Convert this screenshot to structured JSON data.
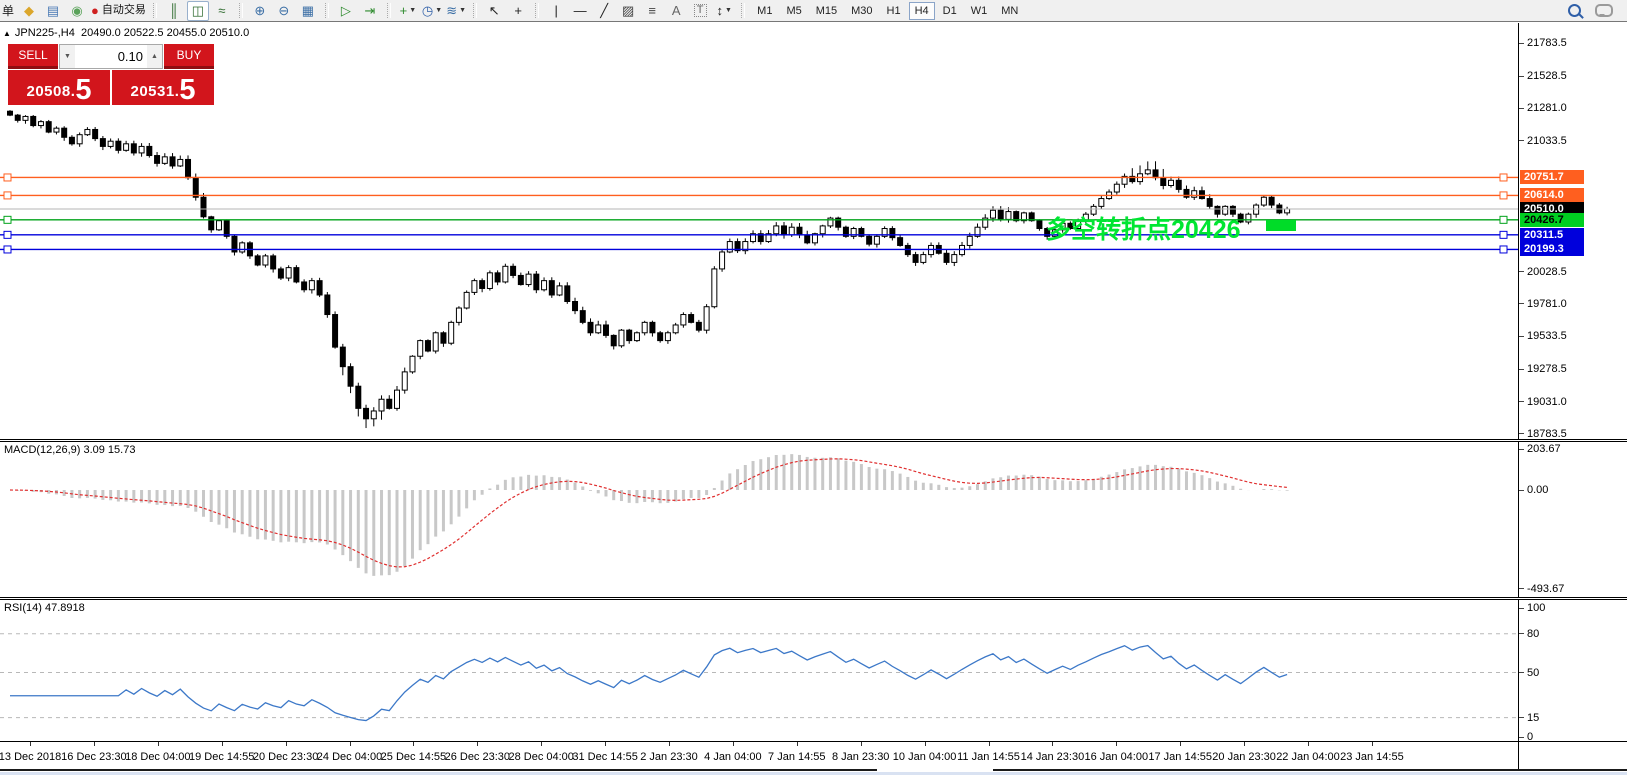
{
  "toolbar": {
    "partial_label": "单",
    "groups": [
      {
        "items": [
          {
            "name": "new-order-icon",
            "glyph": "◆",
            "color": "#dba62b"
          },
          {
            "name": "market-watch-icon",
            "glyph": "▤",
            "color": "#4a7ab5"
          },
          {
            "name": "signals-icon",
            "glyph": "◉",
            "color": "#5aa25a"
          },
          {
            "name": "autotrading-icon",
            "glyph": "●",
            "color": "#cf2020",
            "label": "自动交易"
          }
        ]
      },
      {
        "items": [
          {
            "name": "bar-chart-icon",
            "glyph": "║",
            "color": "#2f6b2f"
          },
          {
            "name": "candlestick-chart-icon",
            "glyph": "◫",
            "color": "#2f6b2f",
            "active": true
          },
          {
            "name": "line-chart-icon",
            "glyph": "≈",
            "color": "#2f6b2f"
          }
        ]
      },
      {
        "items": [
          {
            "name": "zoom-in-icon",
            "glyph": "⊕",
            "color": "#3a6ea5"
          },
          {
            "name": "zoom-out-icon",
            "glyph": "⊖",
            "color": "#3a6ea5"
          },
          {
            "name": "tile-windows-icon",
            "glyph": "▦",
            "color": "#3a6ea5"
          }
        ]
      },
      {
        "items": [
          {
            "name": "auto-scroll-icon",
            "glyph": "▷",
            "color": "#2e8b2e"
          },
          {
            "name": "chart-shift-icon",
            "glyph": "⇥",
            "color": "#2e8b2e"
          }
        ]
      },
      {
        "items": [
          {
            "name": "add-chart-icon",
            "glyph": "+",
            "color": "#2e8b2e",
            "caret": true
          },
          {
            "name": "period-clock-icon",
            "glyph": "◷",
            "color": "#2f5fa8",
            "caret": true
          },
          {
            "name": "template-icon",
            "glyph": "≋",
            "color": "#3a6ea5",
            "caret": true
          }
        ]
      },
      {
        "items": [
          {
            "name": "cursor-icon",
            "glyph": "↖",
            "color": "#222"
          },
          {
            "name": "crosshair-icon",
            "glyph": "+",
            "color": "#222"
          }
        ]
      },
      {
        "items": [
          {
            "name": "vertical-line-icon",
            "glyph": "|",
            "color": "#222"
          },
          {
            "name": "horizontal-line-icon",
            "glyph": "—",
            "color": "#222"
          },
          {
            "name": "trendline-icon",
            "glyph": "╱",
            "color": "#222"
          },
          {
            "name": "channel-icon",
            "glyph": "▨",
            "color": "#444"
          },
          {
            "name": "fibonacci-icon",
            "glyph": "≡",
            "color": "#444"
          },
          {
            "name": "text-icon",
            "glyph": "A",
            "color": "#666"
          },
          {
            "name": "text-label-icon",
            "glyph": "T",
            "color": "#666",
            "boxed": true
          },
          {
            "name": "arrows-icon",
            "glyph": "↕",
            "color": "#222",
            "caret": true
          }
        ]
      }
    ],
    "timeframes": [
      "M1",
      "M5",
      "M15",
      "M30",
      "H1",
      "H4",
      "D1",
      "W1",
      "MN"
    ],
    "active_timeframe": "H4",
    "right_icons": [
      {
        "name": "search-icon",
        "kind": "search"
      },
      {
        "name": "chat-icon",
        "kind": "chat"
      }
    ]
  },
  "chart": {
    "collapse_icon": "▲",
    "symbol_period": "JPN225-,H4",
    "ohlc_text": "20490.0 20522.5 20455.0 20510.0",
    "trade_panel": {
      "sell_label": "SELL",
      "buy_label": "BUY",
      "volume": "0.10",
      "volume_down_icon": "▼",
      "volume_up_icon": "▲",
      "sell_price_base": "20508.",
      "sell_price_pip": "5",
      "buy_price_base": "20531.",
      "buy_price_pip": "5"
    },
    "annotation": {
      "text": "多空转折点20426",
      "color": "#00e632",
      "rect_color": "#00dc28"
    }
  },
  "macd_panel": {
    "label": "MACD(12,26,9) 3.09 15.73",
    "ticks": [
      "203.67",
      "0.00",
      "-493.67"
    ]
  },
  "rsi_panel": {
    "label": "RSI(14) 47.8918",
    "ticks": [
      "100",
      "80",
      "50",
      "15",
      "0"
    ]
  },
  "chart_data": {
    "type": "candlestick",
    "symbol": "JPN225-",
    "timeframe": "H4",
    "last_ohlc": {
      "open": 20490.0,
      "high": 20522.5,
      "low": 20455.0,
      "close": 20510.0
    },
    "bid": "20508.5",
    "ask": "20531.5",
    "price_axis_range": [
      18783.5,
      21783.5
    ],
    "y_ticks": [
      {
        "label": "21783.5",
        "value": 21783.5
      },
      {
        "label": "21528.5",
        "value": 21528.5
      },
      {
        "label": "21281.0",
        "value": 21281.0
      },
      {
        "label": "21033.5",
        "value": 21033.5
      },
      {
        "label": "20028.5",
        "value": 20028.5
      },
      {
        "label": "19781.0",
        "value": 19781.0
      },
      {
        "label": "19533.5",
        "value": 19533.5
      },
      {
        "label": "19278.5",
        "value": 19278.5
      },
      {
        "label": "19031.0",
        "value": 19031.0
      },
      {
        "label": "18783.5",
        "value": 18783.5
      }
    ],
    "x_labels": [
      "13 Dec 2018",
      "16 Dec 23:30",
      "18 Dec 04:00",
      "19 Dec 14:55",
      "20 Dec 23:30",
      "24 Dec 04:00",
      "25 Dec 14:55",
      "26 Dec 23:30",
      "28 Dec 04:00",
      "31 Dec 14:55",
      "2 Jan 23:30",
      "4 Jan 04:00",
      "7 Jan 14:55",
      "8 Jan 23:30",
      "10 Jan 04:00",
      "11 Jan 14:55",
      "14 Jan 23:30",
      "16 Jan 04:00",
      "17 Jan 14:55",
      "20 Jan 23:30",
      "22 Jan 04:00",
      "23 Jan 14:55"
    ],
    "price_levels": [
      {
        "value": 20751.7,
        "label": "20751.7",
        "color": "#ff5f1f",
        "text_color": "#ffffff"
      },
      {
        "value": 20614.0,
        "label": "20614.0",
        "color": "#ff5f1f",
        "text_color": "#ffffff"
      },
      {
        "value": 20510.0,
        "label": "20510.0",
        "color": "#000000",
        "text_color": "#ffffff",
        "current": true,
        "line_color": "#b4b4b4"
      },
      {
        "value": 20426.7,
        "label": "20426.7",
        "color": "#00cf21",
        "text_color": "#000000",
        "line_color": "#00a31a"
      },
      {
        "value": 20311.5,
        "label": "20311.5",
        "color": "#0000dc",
        "text_color": "#ffffff"
      },
      {
        "value": 20199.3,
        "label": "20199.3",
        "color": "#0000dc",
        "text_color": "#ffffff"
      }
    ],
    "first_open": 21260,
    "candles_closes": [
      21230,
      21190,
      21220,
      21150,
      21180,
      21100,
      21130,
      21060,
      21010,
      21080,
      21120,
      21050,
      20990,
      21030,
      20960,
      21010,
      20940,
      20990,
      20920,
      20860,
      20910,
      20840,
      20890,
      20750,
      20600,
      20450,
      20350,
      20420,
      20300,
      20180,
      20250,
      20150,
      20080,
      20150,
      20050,
      19980,
      20060,
      19950,
      19890,
      19960,
      19850,
      19700,
      19450,
      19300,
      19150,
      18980,
      18900,
      18960,
      19050,
      18980,
      19120,
      19260,
      19380,
      19500,
      19420,
      19560,
      19480,
      19640,
      19750,
      19870,
      19960,
      19900,
      20020,
      19950,
      20070,
      20000,
      19930,
      20010,
      19890,
      19960,
      19850,
      19920,
      19800,
      19730,
      19640,
      19560,
      19620,
      19540,
      19460,
      19580,
      19500,
      19560,
      19640,
      19560,
      19500,
      19560,
      19620,
      19700,
      19640,
      19580,
      19760,
      20050,
      20180,
      20260,
      20190,
      20260,
      20320,
      20260,
      20320,
      20380,
      20310,
      20370,
      20310,
      20250,
      20320,
      20380,
      20440,
      20370,
      20300,
      20360,
      20300,
      20240,
      20300,
      20360,
      20290,
      20230,
      20160,
      20100,
      20160,
      20230,
      20170,
      20100,
      20160,
      20230,
      20300,
      20370,
      20440,
      20500,
      20430,
      20490,
      20420,
      20480,
      20420,
      20360,
      20300,
      20350,
      20400,
      20360,
      20420,
      20470,
      20530,
      20590,
      20640,
      20700,
      20760,
      20720,
      20780,
      20810,
      20750,
      20690,
      20730,
      20660,
      20600,
      20650,
      20590,
      20530,
      20470,
      20530,
      20470,
      20410,
      20470,
      20540,
      20600,
      20540,
      20480,
      20510
    ],
    "indicators": [
      {
        "name": "MACD",
        "params": [
          12,
          26,
          9
        ],
        "value": 3.09,
        "signal": 15.73,
        "axis_max": 203.67,
        "axis_min": -493.67,
        "histogram_color": "#c8c8c8",
        "signal_color": "#e03030"
      },
      {
        "name": "RSI",
        "params": [
          14
        ],
        "value": 47.8918,
        "levels": [
          80,
          50,
          15
        ],
        "line_color": "#3c78c8"
      }
    ]
  }
}
